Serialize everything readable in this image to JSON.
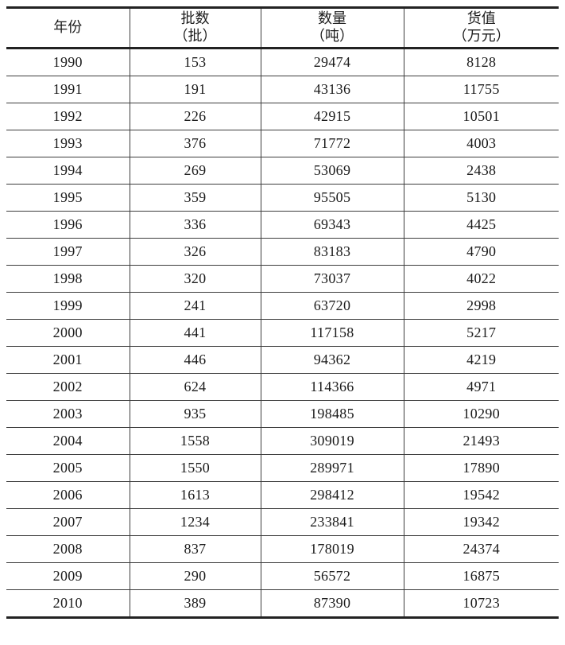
{
  "table": {
    "columns": [
      {
        "title": "年份",
        "unit": ""
      },
      {
        "title": "批数",
        "unit": "（批）"
      },
      {
        "title": "数量",
        "unit": "（吨）"
      },
      {
        "title": "货值",
        "unit": "（万元）"
      }
    ],
    "rows": [
      [
        "1990",
        "153",
        "29474",
        "8128"
      ],
      [
        "1991",
        "191",
        "43136",
        "11755"
      ],
      [
        "1992",
        "226",
        "42915",
        "10501"
      ],
      [
        "1993",
        "376",
        "71772",
        "4003"
      ],
      [
        "1994",
        "269",
        "53069",
        "2438"
      ],
      [
        "1995",
        "359",
        "95505",
        "5130"
      ],
      [
        "1996",
        "336",
        "69343",
        "4425"
      ],
      [
        "1997",
        "326",
        "83183",
        "4790"
      ],
      [
        "1998",
        "320",
        "73037",
        "4022"
      ],
      [
        "1999",
        "241",
        "63720",
        "2998"
      ],
      [
        "2000",
        "441",
        "117158",
        "5217"
      ],
      [
        "2001",
        "446",
        "94362",
        "4219"
      ],
      [
        "2002",
        "624",
        "114366",
        "4971"
      ],
      [
        "2003",
        "935",
        "198485",
        "10290"
      ],
      [
        "2004",
        "1558",
        "309019",
        "21493"
      ],
      [
        "2005",
        "1550",
        "289971",
        "17890"
      ],
      [
        "2006",
        "1613",
        "298412",
        "19542"
      ],
      [
        "2007",
        "1234",
        "233841",
        "19342"
      ],
      [
        "2008",
        "837",
        "178019",
        "24374"
      ],
      [
        "2009",
        "290",
        "56572",
        "16875"
      ],
      [
        "2010",
        "389",
        "87390",
        "10723"
      ]
    ],
    "text_color": "#1b1b1b",
    "line_color": "#3d3d3d",
    "border_color": "#222222"
  }
}
